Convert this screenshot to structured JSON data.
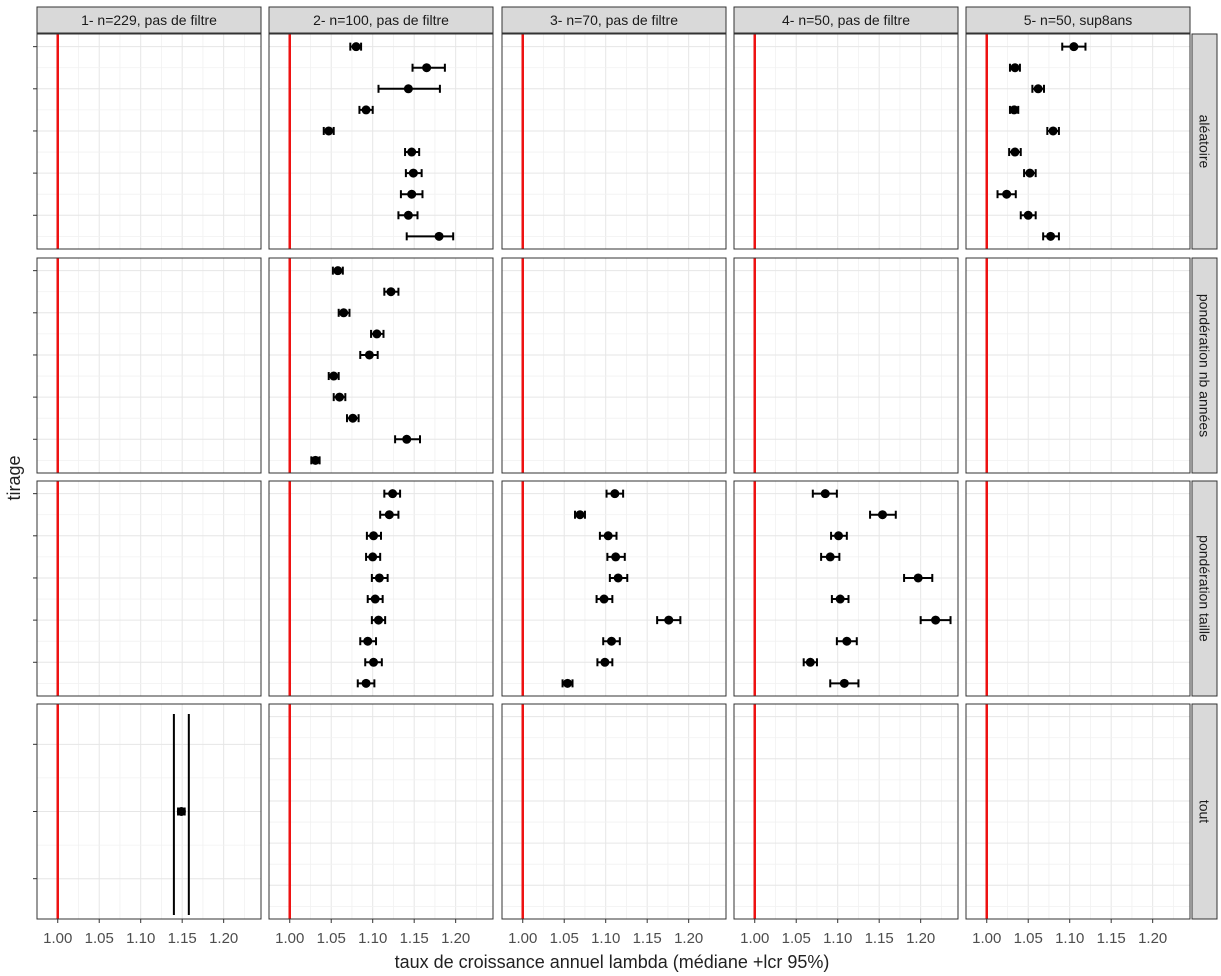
{
  "chart_data": {
    "type": "faceted-errorbar",
    "xlabel": "taux de croissance annuel lambda (médiane +lcr 95%)",
    "ylabel": "tirage",
    "xlim": [
      0.975,
      1.245
    ],
    "x_ticks": [
      "1.00",
      "1.05",
      "1.10",
      "1.15",
      "1.20"
    ],
    "reference_line": {
      "x": 1.0,
      "color": "#ee1111"
    },
    "grid": true,
    "columns": [
      "1- n=229, pas de filtre",
      "2- n=100, pas de filtre",
      "3- n=70, pas de filtre",
      "4- n=50, pas de filtre",
      "5- n=50, sup8ans"
    ],
    "rows": [
      "aléatoire",
      "pondération nb années",
      "pondération taille",
      "tout"
    ],
    "panels": [
      {
        "row": 0,
        "col": 1,
        "n": 10,
        "points": [
          {
            "pos": 1,
            "median": 1.08,
            "low": 1.073,
            "high": 1.086
          },
          {
            "pos": 2,
            "median": 1.165,
            "low": 1.148,
            "high": 1.187
          },
          {
            "pos": 3,
            "median": 1.143,
            "low": 1.107,
            "high": 1.181
          },
          {
            "pos": 4,
            "median": 1.092,
            "low": 1.084,
            "high": 1.1
          },
          {
            "pos": 5,
            "median": 1.047,
            "low": 1.041,
            "high": 1.053
          },
          {
            "pos": 6,
            "median": 1.147,
            "low": 1.139,
            "high": 1.156
          },
          {
            "pos": 7,
            "median": 1.149,
            "low": 1.14,
            "high": 1.159
          },
          {
            "pos": 8,
            "median": 1.147,
            "low": 1.134,
            "high": 1.16
          },
          {
            "pos": 9,
            "median": 1.143,
            "low": 1.131,
            "high": 1.154
          },
          {
            "pos": 10,
            "median": 1.18,
            "low": 1.141,
            "high": 1.197
          }
        ]
      },
      {
        "row": 0,
        "col": 4,
        "n": 10,
        "points": [
          {
            "pos": 1,
            "median": 1.105,
            "low": 1.091,
            "high": 1.119
          },
          {
            "pos": 2,
            "median": 1.034,
            "low": 1.028,
            "high": 1.04
          },
          {
            "pos": 3,
            "median": 1.062,
            "low": 1.055,
            "high": 1.069
          },
          {
            "pos": 4,
            "median": 1.033,
            "low": 1.028,
            "high": 1.038
          },
          {
            "pos": 5,
            "median": 1.08,
            "low": 1.073,
            "high": 1.087
          },
          {
            "pos": 6,
            "median": 1.034,
            "low": 1.027,
            "high": 1.041
          },
          {
            "pos": 7,
            "median": 1.052,
            "low": 1.045,
            "high": 1.059
          },
          {
            "pos": 8,
            "median": 1.024,
            "low": 1.013,
            "high": 1.035
          },
          {
            "pos": 9,
            "median": 1.05,
            "low": 1.041,
            "high": 1.059
          },
          {
            "pos": 10,
            "median": 1.077,
            "low": 1.068,
            "high": 1.087
          }
        ]
      },
      {
        "row": 1,
        "col": 1,
        "n": 10,
        "points": [
          {
            "pos": 1,
            "median": 1.058,
            "low": 1.052,
            "high": 1.064
          },
          {
            "pos": 2,
            "median": 1.122,
            "low": 1.114,
            "high": 1.131
          },
          {
            "pos": 3,
            "median": 1.065,
            "low": 1.059,
            "high": 1.072
          },
          {
            "pos": 4,
            "median": 1.105,
            "low": 1.098,
            "high": 1.113
          },
          {
            "pos": 5,
            "median": 1.096,
            "low": 1.085,
            "high": 1.106
          },
          {
            "pos": 6,
            "median": 1.053,
            "low": 1.047,
            "high": 1.059
          },
          {
            "pos": 7,
            "median": 1.06,
            "low": 1.053,
            "high": 1.067
          },
          {
            "pos": 8,
            "median": 1.076,
            "low": 1.069,
            "high": 1.083
          },
          {
            "pos": 9,
            "median": 1.141,
            "low": 1.127,
            "high": 1.157
          },
          {
            "pos": 10,
            "median": 1.031,
            "low": 1.026,
            "high": 1.036
          }
        ]
      },
      {
        "row": 2,
        "col": 1,
        "n": 10,
        "points": [
          {
            "pos": 1,
            "median": 1.124,
            "low": 1.114,
            "high": 1.133
          },
          {
            "pos": 2,
            "median": 1.12,
            "low": 1.109,
            "high": 1.131
          },
          {
            "pos": 3,
            "median": 1.101,
            "low": 1.093,
            "high": 1.11
          },
          {
            "pos": 4,
            "median": 1.1,
            "low": 1.092,
            "high": 1.109
          },
          {
            "pos": 5,
            "median": 1.108,
            "low": 1.099,
            "high": 1.118
          },
          {
            "pos": 6,
            "median": 1.103,
            "low": 1.094,
            "high": 1.112
          },
          {
            "pos": 7,
            "median": 1.107,
            "low": 1.099,
            "high": 1.115
          },
          {
            "pos": 8,
            "median": 1.094,
            "low": 1.085,
            "high": 1.104
          },
          {
            "pos": 9,
            "median": 1.101,
            "low": 1.091,
            "high": 1.111
          },
          {
            "pos": 10,
            "median": 1.092,
            "low": 1.082,
            "high": 1.102
          }
        ]
      },
      {
        "row": 2,
        "col": 2,
        "n": 10,
        "points": [
          {
            "pos": 1,
            "median": 1.111,
            "low": 1.101,
            "high": 1.121
          },
          {
            "pos": 2,
            "median": 1.069,
            "low": 1.063,
            "high": 1.075
          },
          {
            "pos": 3,
            "median": 1.103,
            "low": 1.093,
            "high": 1.113
          },
          {
            "pos": 4,
            "median": 1.112,
            "low": 1.102,
            "high": 1.123
          },
          {
            "pos": 5,
            "median": 1.115,
            "low": 1.105,
            "high": 1.126
          },
          {
            "pos": 6,
            "median": 1.098,
            "low": 1.089,
            "high": 1.108
          },
          {
            "pos": 7,
            "median": 1.176,
            "low": 1.162,
            "high": 1.19
          },
          {
            "pos": 8,
            "median": 1.107,
            "low": 1.097,
            "high": 1.117
          },
          {
            "pos": 9,
            "median": 1.099,
            "low": 1.09,
            "high": 1.108
          },
          {
            "pos": 10,
            "median": 1.054,
            "low": 1.048,
            "high": 1.06
          }
        ]
      },
      {
        "row": 2,
        "col": 3,
        "n": 10,
        "points": [
          {
            "pos": 1,
            "median": 1.085,
            "low": 1.07,
            "high": 1.099
          },
          {
            "pos": 2,
            "median": 1.154,
            "low": 1.139,
            "high": 1.17
          },
          {
            "pos": 3,
            "median": 1.101,
            "low": 1.092,
            "high": 1.111
          },
          {
            "pos": 4,
            "median": 1.091,
            "low": 1.08,
            "high": 1.102
          },
          {
            "pos": 5,
            "median": 1.197,
            "low": 1.18,
            "high": 1.214
          },
          {
            "pos": 6,
            "median": 1.103,
            "low": 1.093,
            "high": 1.113
          },
          {
            "pos": 7,
            "median": 1.218,
            "low": 1.2,
            "high": 1.236
          },
          {
            "pos": 8,
            "median": 1.111,
            "low": 1.099,
            "high": 1.123
          },
          {
            "pos": 9,
            "median": 1.067,
            "low": 1.059,
            "high": 1.075
          },
          {
            "pos": 10,
            "median": 1.108,
            "low": 1.091,
            "high": 1.125
          }
        ]
      },
      {
        "row": 3,
        "col": 0,
        "n": 3,
        "points": [
          {
            "pos": 2,
            "median": 1.149,
            "low": 1.145,
            "high": 1.153
          }
        ],
        "vlines": [
          1.14,
          1.158
        ]
      }
    ]
  }
}
